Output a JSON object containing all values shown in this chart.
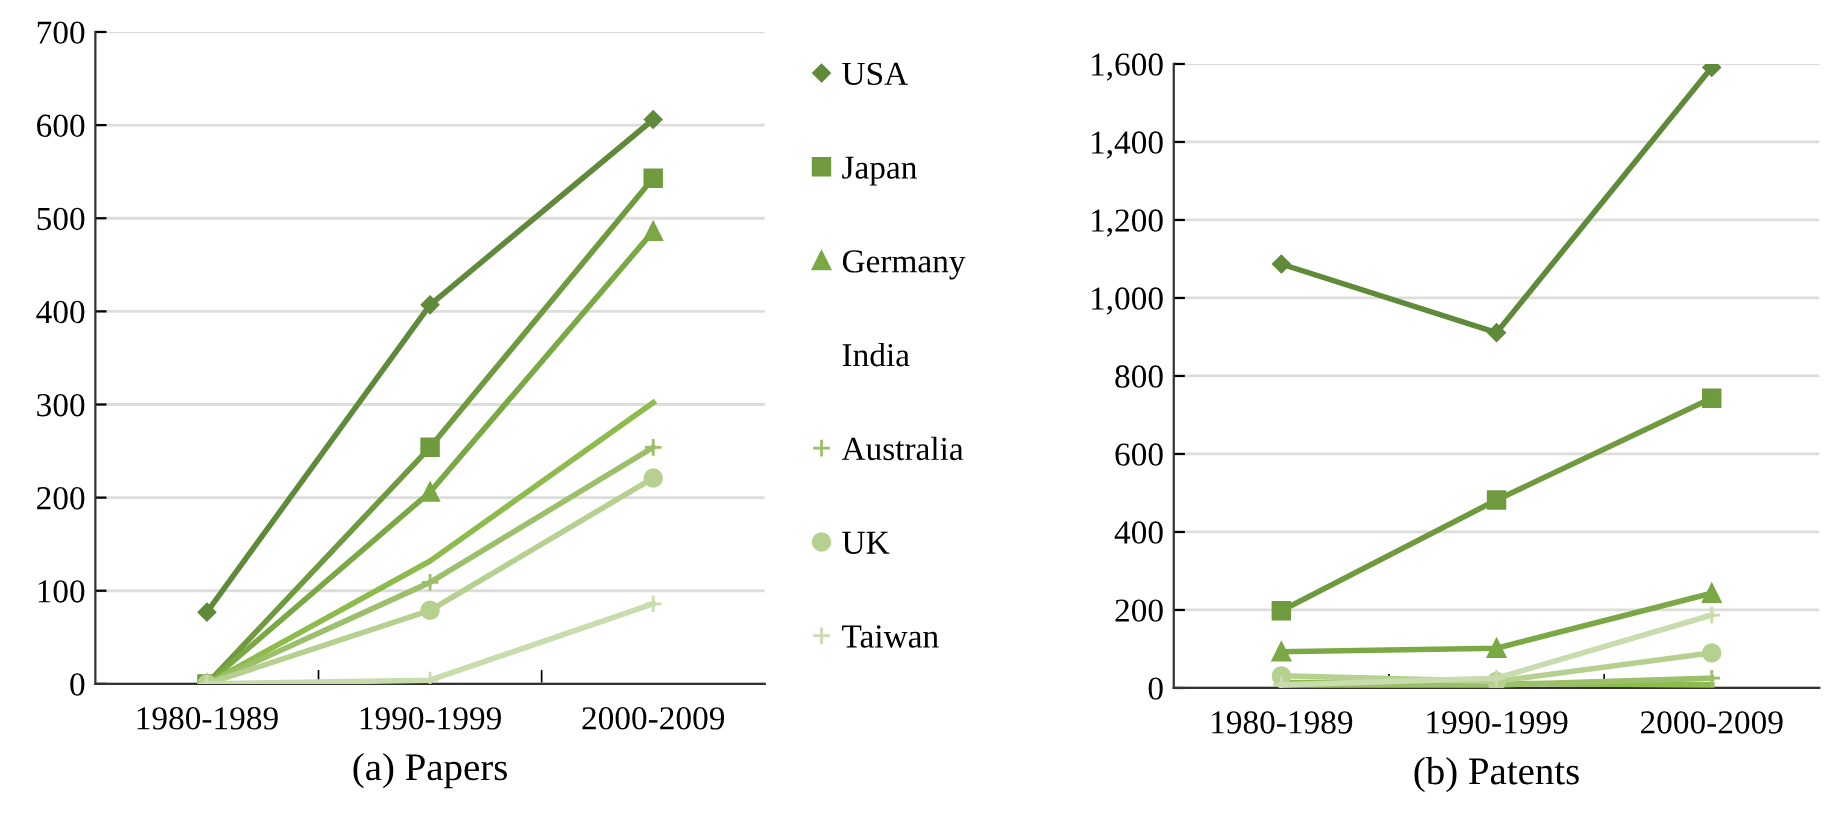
{
  "chart_data": [
    {
      "type": "line",
      "title": "(a) Papers",
      "categories": [
        "1980-1989",
        "1990-1999",
        "2000-2009"
      ],
      "ylim": [
        0,
        700
      ],
      "yticks": [
        0,
        100,
        200,
        300,
        400,
        500,
        600,
        700
      ],
      "grid": "y",
      "legend": "right",
      "series": [
        {
          "name": "USA",
          "color": "#5f8a3a",
          "marker": "diamond",
          "values": [
            77,
            407,
            606
          ]
        },
        {
          "name": "Japan",
          "color": "#6f9a3e",
          "marker": "square",
          "values": [
            0,
            254,
            543
          ]
        },
        {
          "name": "Germany",
          "color": "#7aa844",
          "marker": "triangle",
          "values": [
            0,
            206,
            486
          ]
        },
        {
          "name": "India",
          "color": "#8dbb4c",
          "marker": "none",
          "values": [
            0,
            132,
            302
          ]
        },
        {
          "name": "Australia",
          "color": "#9cc06a",
          "marker": "cross",
          "values": [
            0,
            109,
            254
          ]
        },
        {
          "name": "UK",
          "color": "#b5d08f",
          "marker": "circle",
          "values": [
            0,
            79,
            221
          ]
        },
        {
          "name": "Taiwan",
          "color": "#c8dcae",
          "marker": "cross",
          "values": [
            0,
            4,
            86
          ]
        }
      ]
    },
    {
      "type": "line",
      "title": "(b) Patents",
      "categories": [
        "1980-1989",
        "1990-1999",
        "2000-2009"
      ],
      "ylim": [
        0,
        1600
      ],
      "yticks": [
        0,
        {
          "value": 200,
          "label": "200"
        },
        {
          "value": 400,
          "label": "400"
        },
        {
          "value": 600,
          "label": "600"
        },
        {
          "value": 800,
          "label": "800"
        },
        {
          "value": 1000,
          "label": "1,000"
        },
        {
          "value": 1200,
          "label": "1,200"
        },
        {
          "value": 1400,
          "label": "1,400"
        },
        {
          "value": 1600,
          "label": "1,600"
        }
      ],
      "grid": "y",
      "series": [
        {
          "color": "#5f8a3a",
          "marker": "diamond",
          "values": [
            1087,
            911,
            1591
          ]
        },
        {
          "color": "#6f9a3e",
          "marker": "square",
          "values": [
            198,
            482,
            743
          ]
        },
        {
          "color": "#7aa844",
          "marker": "triangle",
          "values": [
            93,
            102,
            243
          ]
        },
        {
          "color": "#8dbb4c",
          "marker": "none",
          "values": [
            14,
            12,
            8
          ]
        },
        {
          "color": "#9cc06a",
          "marker": "cross",
          "values": [
            8,
            8,
            25
          ]
        },
        {
          "color": "#b5d08f",
          "marker": "circle",
          "values": [
            31,
            17,
            90
          ]
        },
        {
          "color": "#c8dcae",
          "marker": "cross",
          "values": [
            8,
            25,
            187
          ]
        }
      ]
    }
  ]
}
